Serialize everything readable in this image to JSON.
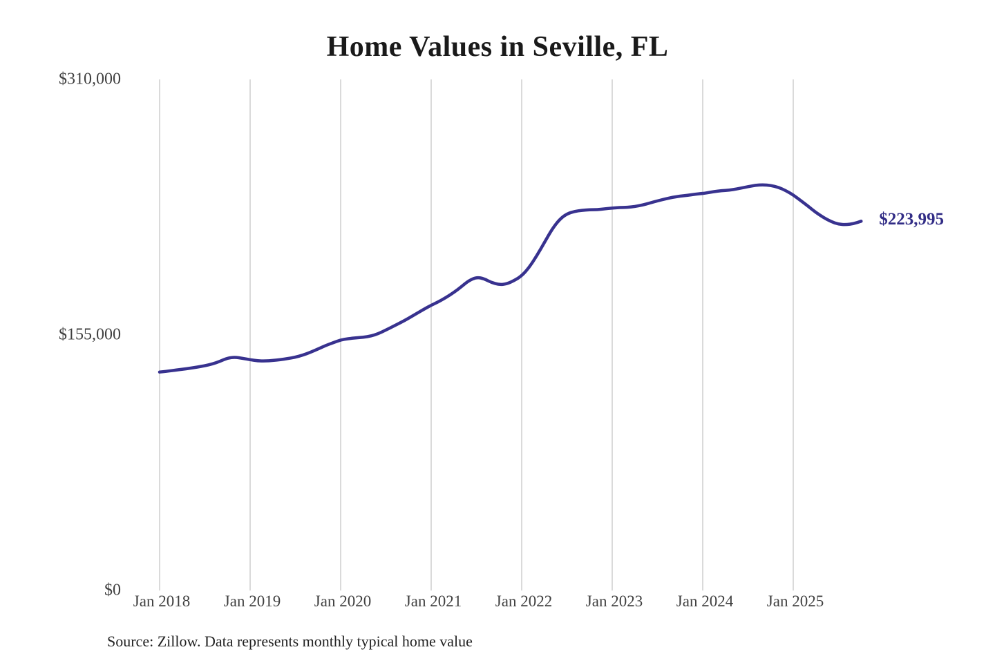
{
  "chart": {
    "title": "Home Values in Seville, FL",
    "source_note": "Source: Zillow. Data represents monthly typical home value"
  },
  "chart_data": {
    "type": "line",
    "title": "Home Values in Seville, FL",
    "xlabel": "",
    "ylabel": "",
    "x_start": "2018-01",
    "x_end": "2025-10",
    "frequency": "monthly",
    "x_tick_labels": [
      "Jan 2018",
      "Jan 2019",
      "Jan 2020",
      "Jan 2021",
      "Jan 2022",
      "Jan 2023",
      "Jan 2024",
      "Jan 2025"
    ],
    "x_tick_month_indices": [
      0,
      12,
      24,
      36,
      48,
      60,
      72,
      84
    ],
    "y_ticks": [
      {
        "value": 0,
        "label": "$0"
      },
      {
        "value": 155000,
        "label": "$155,000"
      },
      {
        "value": 310000,
        "label": "$310,000"
      }
    ],
    "ylim": [
      0,
      310000
    ],
    "grid": "vertical",
    "legend": "none",
    "annotation": {
      "text": "$223,995",
      "attached_to": "last-point"
    },
    "series": [
      {
        "name": "Typical home value",
        "values": [
          132500,
          133000,
          133600,
          134200,
          134800,
          135500,
          136300,
          137400,
          139000,
          141000,
          141500,
          140800,
          140000,
          139300,
          139200,
          139500,
          140000,
          140700,
          141500,
          142800,
          144500,
          146500,
          148600,
          150300,
          152000,
          152800,
          153200,
          153600,
          154300,
          155800,
          158000,
          160300,
          162600,
          165100,
          167800,
          170500,
          173000,
          175200,
          177800,
          180800,
          184300,
          188000,
          190000,
          189200,
          186800,
          185500,
          185900,
          188000,
          190800,
          196000,
          203000,
          211000,
          219000,
          225000,
          228500,
          230000,
          230600,
          231000,
          231000,
          231500,
          232000,
          232300,
          232400,
          232900,
          233800,
          235000,
          236300,
          237500,
          238500,
          239200,
          239700,
          240400,
          240800,
          241600,
          242300,
          242700,
          243100,
          244000,
          245000,
          245800,
          246100,
          245700,
          244600,
          242600,
          239900,
          236500,
          233000,
          229300,
          226200,
          223800,
          222200,
          221900,
          222500,
          223995
        ]
      }
    ],
    "colors": {
      "line": "#38328f",
      "grid": "#cbcbcb",
      "axis_text": "#404040",
      "title_text": "#1a1a1a",
      "annotation_text": "#322d86",
      "background": "#ffffff"
    }
  }
}
